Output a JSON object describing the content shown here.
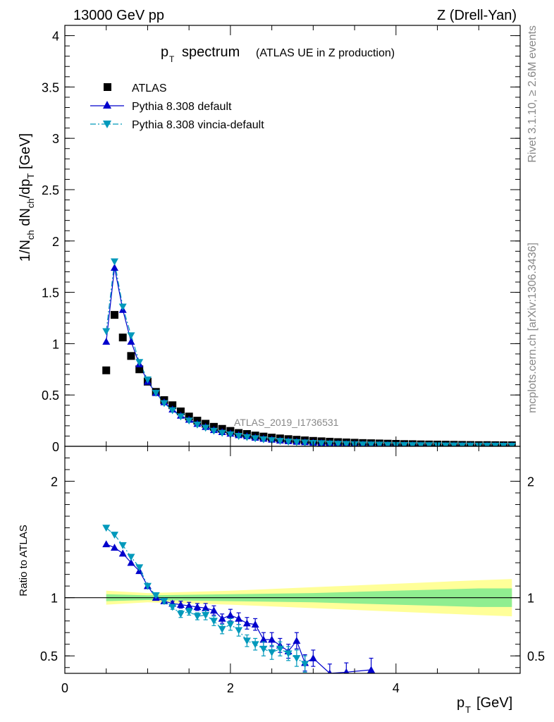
{
  "header": {
    "left": "13000 GeV pp",
    "right": "Z (Drell-Yan)"
  },
  "side_labels": {
    "rivet": "Rivet 3.1.10, ≥ 2.6M events",
    "mcplots": "mcplots.cern.ch [arXiv:1306.3436]"
  },
  "chart_data": [
    {
      "type": "scatter",
      "title": "p_T spectrum (ATLAS UE in Z production)",
      "title_main": "spectrum",
      "title_sub": "(ATLAS UE in Z production)",
      "ylabel": "1/N_ch dN_ch/dp_T [GeV]",
      "xlabel": "",
      "xlim": [
        0,
        5.5
      ],
      "ylim": [
        0,
        4.1
      ],
      "yticks": [
        "0",
        "0.5",
        "1",
        "1.5",
        "2",
        "2.5",
        "3",
        "3.5",
        "4"
      ],
      "analysis_tag": "ATLAS_2019_I1736531",
      "legend_position": "top-left",
      "grid": false,
      "x": [
        0.5,
        0.6,
        0.7,
        0.8,
        0.9,
        1.0,
        1.1,
        1.2,
        1.3,
        1.4,
        1.5,
        1.6,
        1.7,
        1.8,
        1.9,
        2.0,
        2.1,
        2.2,
        2.3,
        2.4,
        2.5,
        2.6,
        2.7,
        2.8,
        2.9,
        3.0,
        3.1,
        3.2,
        3.3,
        3.4,
        3.5,
        3.6,
        3.7,
        3.8,
        3.9,
        4.0,
        4.1,
        4.2,
        4.3,
        4.4,
        4.5,
        4.6,
        4.7,
        4.8,
        4.9,
        5.0,
        5.1,
        5.2,
        5.3,
        5.4
      ],
      "series": [
        {
          "name": "ATLAS",
          "color": "#000000",
          "marker": "square",
          "values": [
            0.74,
            1.28,
            1.06,
            0.88,
            0.75,
            0.63,
            0.53,
            0.45,
            0.4,
            0.34,
            0.29,
            0.25,
            0.22,
            0.19,
            0.17,
            0.15,
            0.13,
            0.12,
            0.105,
            0.095,
            0.085,
            0.077,
            0.07,
            0.064,
            0.058,
            0.053,
            0.049,
            0.045,
            0.041,
            0.038,
            0.035,
            0.032,
            0.03,
            0.028,
            0.026,
            0.024,
            0.022,
            0.021,
            0.019,
            0.018,
            0.017,
            0.016,
            0.015,
            0.014,
            0.013,
            0.012,
            0.012,
            0.011,
            0.01,
            0.01
          ]
        },
        {
          "name": "Pythia 8.308 default",
          "color": "#0000cc",
          "marker": "triangle-up",
          "line": "solid",
          "values": [
            1.02,
            1.74,
            1.33,
            1.02,
            0.8,
            0.63,
            0.52,
            0.43,
            0.36,
            0.3,
            0.26,
            0.22,
            0.19,
            0.16,
            0.14,
            0.125,
            0.11,
            0.1,
            0.085,
            0.075,
            0.066,
            0.058,
            0.052,
            0.046,
            0.041,
            0.037,
            0.033,
            0.03,
            0.027,
            0.024,
            0.022,
            0.02,
            0.018,
            0.016,
            0.015,
            0.014,
            0.013,
            0.012,
            0.011,
            0.01,
            0.009,
            0.008,
            0.008,
            0.007,
            0.007,
            0.006,
            0.006,
            0.005,
            0.005,
            0.005
          ]
        },
        {
          "name": "Pythia 8.308 vincia-default",
          "color": "#0099bb",
          "marker": "triangle-down",
          "line": "dashdot",
          "values": [
            1.12,
            1.8,
            1.36,
            1.08,
            0.82,
            0.65,
            0.52,
            0.42,
            0.35,
            0.29,
            0.25,
            0.21,
            0.18,
            0.15,
            0.13,
            0.115,
            0.1,
            0.088,
            0.077,
            0.067,
            0.058,
            0.051,
            0.045,
            0.04,
            0.036,
            0.032,
            0.029,
            0.026,
            0.023,
            0.021,
            0.019,
            0.017,
            0.016,
            0.015,
            0.013,
            0.012,
            0.011,
            0.01,
            0.009,
            0.009,
            0.008,
            0.007,
            0.007,
            0.006,
            0.006,
            0.005,
            0.005,
            0.005,
            0.004,
            0.004
          ]
        }
      ]
    },
    {
      "type": "scatter",
      "ylabel": "Ratio to ATLAS",
      "xlabel": "p_T [GeV]",
      "xlabel_main": "p",
      "xlabel_sub": "T",
      "xlabel_unit": "[GeV]",
      "xlim": [
        0,
        5.5
      ],
      "ylim": [
        0.35,
        2.3
      ],
      "xticks": [
        "0",
        "2",
        "4"
      ],
      "yticks": [
        "0.5",
        "1",
        "2"
      ],
      "reference_line": 1,
      "band_inner": {
        "x": [
          0.5,
          1.0,
          2.0,
          3.0,
          4.0,
          5.0,
          5.4
        ],
        "half_width": [
          0.03,
          0.02,
          0.03,
          0.04,
          0.06,
          0.08,
          0.08
        ],
        "color": "#90ee90"
      },
      "band_outer": {
        "x": [
          0.5,
          1.0,
          2.0,
          3.0,
          4.0,
          5.0,
          5.4
        ],
        "half_width": [
          0.06,
          0.04,
          0.06,
          0.09,
          0.12,
          0.15,
          0.16
        ],
        "color": "#ffff99"
      },
      "series": [
        {
          "name": "Pythia 8.308 default",
          "color": "#0000cc",
          "marker": "triangle-up",
          "x": [
            0.5,
            0.6,
            0.7,
            0.8,
            0.9,
            1.0,
            1.1,
            1.2,
            1.3,
            1.4,
            1.5,
            1.6,
            1.7,
            1.8,
            1.9,
            2.0,
            2.1,
            2.2,
            2.3,
            2.4,
            2.5,
            2.6,
            2.7,
            2.8,
            2.9,
            3.0,
            3.2,
            3.4,
            3.7
          ],
          "values": [
            1.46,
            1.43,
            1.38,
            1.3,
            1.23,
            1.1,
            1.0,
            0.97,
            0.95,
            0.94,
            0.93,
            0.92,
            0.91,
            0.89,
            0.82,
            0.85,
            0.82,
            0.78,
            0.77,
            0.64,
            0.64,
            0.59,
            0.54,
            0.63,
            0.44,
            0.48,
            0.35,
            0.36,
            0.38
          ],
          "errors": [
            0.01,
            0.01,
            0.01,
            0.01,
            0.01,
            0.01,
            0.01,
            0.02,
            0.02,
            0.03,
            0.03,
            0.03,
            0.04,
            0.04,
            0.04,
            0.05,
            0.05,
            0.05,
            0.05,
            0.06,
            0.06,
            0.06,
            0.06,
            0.07,
            0.07,
            0.07,
            0.08,
            0.08,
            0.1
          ]
        },
        {
          "name": "Pythia 8.308 vincia-default",
          "color": "#0099bb",
          "marker": "triangle-down",
          "x": [
            0.5,
            0.6,
            0.7,
            0.8,
            0.9,
            1.0,
            1.1,
            1.2,
            1.3,
            1.4,
            1.5,
            1.6,
            1.7,
            1.8,
            1.9,
            2.0,
            2.1,
            2.2,
            2.3,
            2.4,
            2.5,
            2.6,
            2.7,
            2.8,
            2.9
          ],
          "values": [
            1.6,
            1.54,
            1.45,
            1.35,
            1.26,
            1.1,
            1.02,
            0.97,
            0.92,
            0.86,
            0.88,
            0.84,
            0.85,
            0.8,
            0.73,
            0.77,
            0.72,
            0.63,
            0.6,
            0.56,
            0.53,
            0.56,
            0.52,
            0.48,
            0.43
          ],
          "errors": [
            0.01,
            0.01,
            0.01,
            0.01,
            0.01,
            0.01,
            0.01,
            0.02,
            0.02,
            0.03,
            0.03,
            0.03,
            0.04,
            0.04,
            0.04,
            0.05,
            0.05,
            0.05,
            0.05,
            0.06,
            0.06,
            0.06,
            0.06,
            0.07,
            0.07
          ]
        }
      ]
    }
  ]
}
